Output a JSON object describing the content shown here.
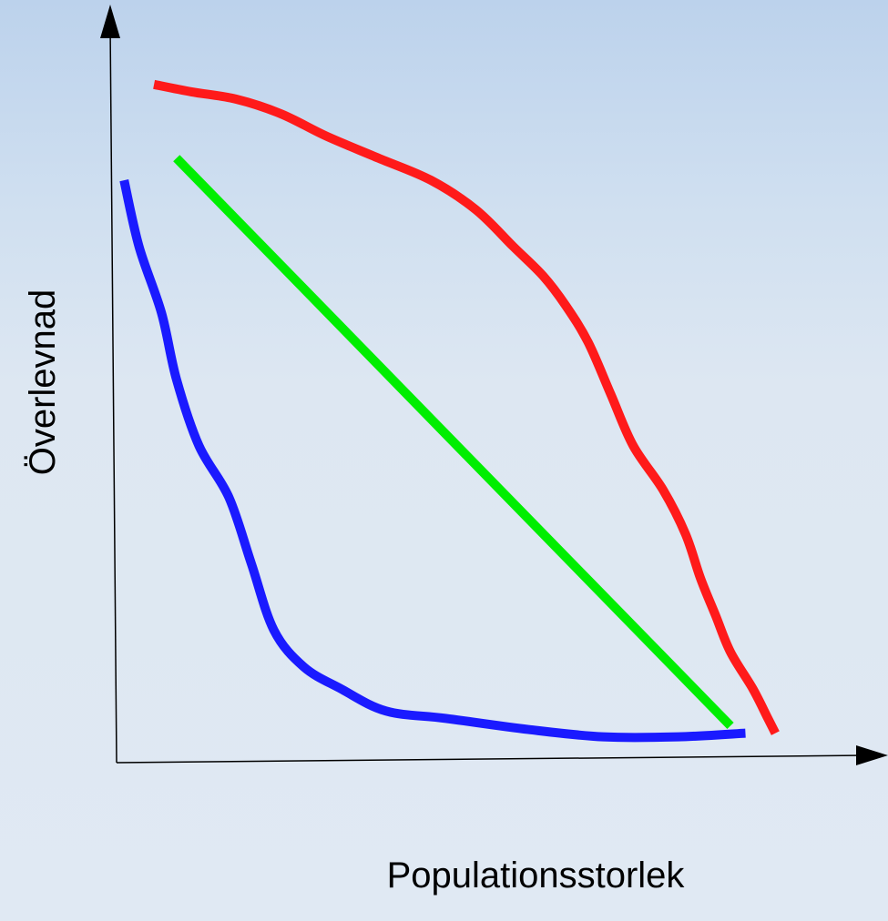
{
  "chart_data": {
    "type": "line",
    "title": "",
    "xlabel": "Populationsstorlek",
    "ylabel": "Överlevnad",
    "xlim": [
      0,
      1
    ],
    "ylim": [
      0,
      1
    ],
    "grid": false,
    "legend": "none",
    "series": [
      {
        "color": "#ff1a1a",
        "points": [
          [
            0.05,
            0.92
          ],
          [
            0.1,
            0.91
          ],
          [
            0.16,
            0.9
          ],
          [
            0.22,
            0.88
          ],
          [
            0.28,
            0.85
          ],
          [
            0.35,
            0.82
          ],
          [
            0.42,
            0.79
          ],
          [
            0.48,
            0.75
          ],
          [
            0.53,
            0.7
          ],
          [
            0.57,
            0.66
          ],
          [
            0.6,
            0.62
          ],
          [
            0.63,
            0.57
          ],
          [
            0.66,
            0.5
          ],
          [
            0.69,
            0.43
          ],
          [
            0.73,
            0.37
          ],
          [
            0.76,
            0.31
          ],
          [
            0.78,
            0.25
          ],
          [
            0.8,
            0.2
          ],
          [
            0.82,
            0.15
          ],
          [
            0.85,
            0.1
          ],
          [
            0.87,
            0.06
          ],
          [
            0.88,
            0.04
          ]
        ]
      },
      {
        "color": "#00ee00",
        "points": [
          [
            0.08,
            0.82
          ],
          [
            0.82,
            0.05
          ]
        ]
      },
      {
        "color": "#1a1aff",
        "points": [
          [
            0.01,
            0.79
          ],
          [
            0.03,
            0.7
          ],
          [
            0.06,
            0.61
          ],
          [
            0.08,
            0.52
          ],
          [
            0.11,
            0.43
          ],
          [
            0.15,
            0.36
          ],
          [
            0.18,
            0.27
          ],
          [
            0.21,
            0.18
          ],
          [
            0.25,
            0.13
          ],
          [
            0.3,
            0.1
          ],
          [
            0.36,
            0.07
          ],
          [
            0.44,
            0.06
          ],
          [
            0.55,
            0.045
          ],
          [
            0.65,
            0.035
          ],
          [
            0.75,
            0.035
          ],
          [
            0.84,
            0.04
          ]
        ]
      }
    ]
  }
}
